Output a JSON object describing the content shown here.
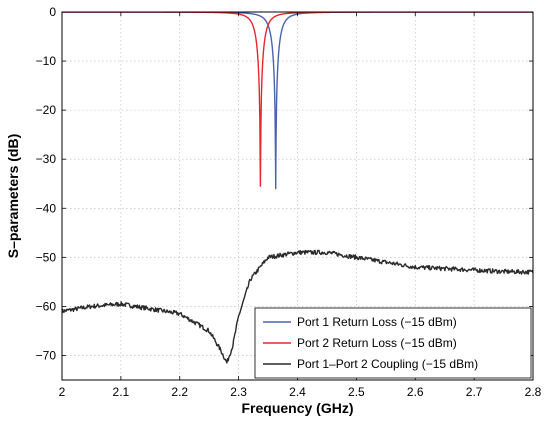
{
  "chart_data": {
    "type": "line",
    "title": "",
    "xlabel": "Frequency (GHz)",
    "ylabel": "S–parameters (dB)",
    "xlim": [
      2.0,
      2.8
    ],
    "ylim": [
      -75,
      0
    ],
    "xticks": [
      2.0,
      2.1,
      2.2,
      2.3,
      2.4,
      2.5,
      2.6,
      2.7,
      2.8
    ],
    "xtick_labels": [
      "2",
      "2.1",
      "2.2",
      "2.3",
      "2.4",
      "2.5",
      "2.6",
      "2.7",
      "2.8"
    ],
    "yticks": [
      0,
      -10,
      -20,
      -30,
      -40,
      -50,
      -60,
      -70
    ],
    "ytick_labels": [
      "0",
      "−10",
      "−20",
      "−30",
      "−40",
      "−50",
      "−60",
      "−70"
    ],
    "grid": true,
    "legend_position": "bottom-right",
    "series": [
      {
        "name": "Port 1 Return Loss (−15 dBm)",
        "color": "#4b62b0",
        "resonance": {
          "f0": 2.363,
          "min_db": -36,
          "half_width": 0.012
        },
        "x": [
          2.0,
          2.1,
          2.2,
          2.25,
          2.3,
          2.33,
          2.35,
          2.363,
          2.375,
          2.4,
          2.45,
          2.5,
          2.6,
          2.8
        ],
        "y": [
          -0.5,
          -0.8,
          -1.5,
          -2.4,
          -5,
          -10.5,
          -21,
          -36,
          -21,
          -7,
          -2.3,
          -1.2,
          -0.5,
          -0.2
        ]
      },
      {
        "name": "Port 2 Return Loss (−15 dBm)",
        "color": "#e8262d",
        "resonance": {
          "f0": 2.337,
          "min_db": -35.5,
          "half_width": 0.012
        },
        "x": [
          2.0,
          2.1,
          2.2,
          2.25,
          2.3,
          2.32,
          2.337,
          2.35,
          2.375,
          2.4,
          2.45,
          2.5,
          2.6,
          2.8
        ],
        "y": [
          -0.6,
          -1,
          -2.4,
          -4.2,
          -12,
          -20,
          -35.5,
          -20,
          -6,
          -3,
          -1.3,
          -0.7,
          -0.3,
          -0.1
        ]
      },
      {
        "name": "Port 1–Port 2 Coupling (−15 dBm)",
        "color": "#2a2a2a",
        "x": [
          2.0,
          2.05,
          2.1,
          2.15,
          2.2,
          2.25,
          2.27,
          2.28,
          2.29,
          2.3,
          2.32,
          2.35,
          2.4,
          2.45,
          2.5,
          2.55,
          2.6,
          2.65,
          2.7,
          2.75,
          2.8
        ],
        "y": [
          -61,
          -60,
          -59.5,
          -60.5,
          -61.5,
          -65,
          -69,
          -71.5,
          -68,
          -62,
          -54.5,
          -50,
          -49,
          -49,
          -50,
          -51,
          -52,
          -52.3,
          -52.6,
          -52.9,
          -53
        ]
      }
    ]
  }
}
